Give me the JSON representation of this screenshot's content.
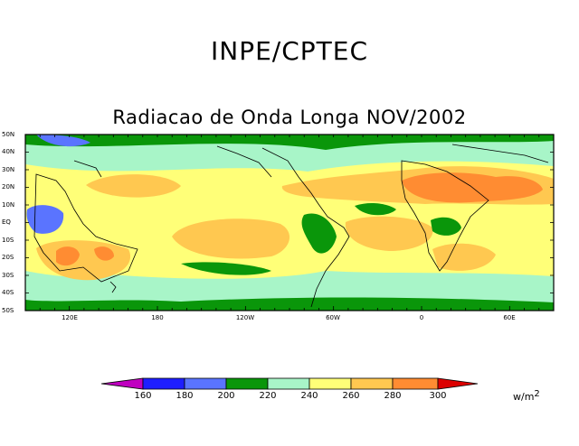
{
  "header": {
    "title": "INPE/CPTEC"
  },
  "map": {
    "title": "Radiacao de Onda Longa NOV/2002",
    "lat_labels": [
      "50N",
      "40N",
      "30N",
      "20N",
      "10N",
      "EQ",
      "10S",
      "20S",
      "30S",
      "40S",
      "50S"
    ],
    "lon_labels": [
      "120E",
      "180",
      "120W",
      "60W",
      "0",
      "60E"
    ],
    "colors": {
      "lt160": "#c000c0",
      "b160_180": "#1e1eff",
      "b180_200": "#5a74ff",
      "b200_220": "#0a960a",
      "b220_240": "#a8f5c8",
      "b240_260": "#ffff78",
      "b260_280": "#ffc850",
      "b280_300": "#ff8c32",
      "gt300": "#dc0000"
    }
  },
  "colorbar": {
    "values": [
      "160",
      "180",
      "200",
      "220",
      "240",
      "260",
      "280",
      "300"
    ],
    "units": "w/m",
    "units_exp": "2"
  }
}
